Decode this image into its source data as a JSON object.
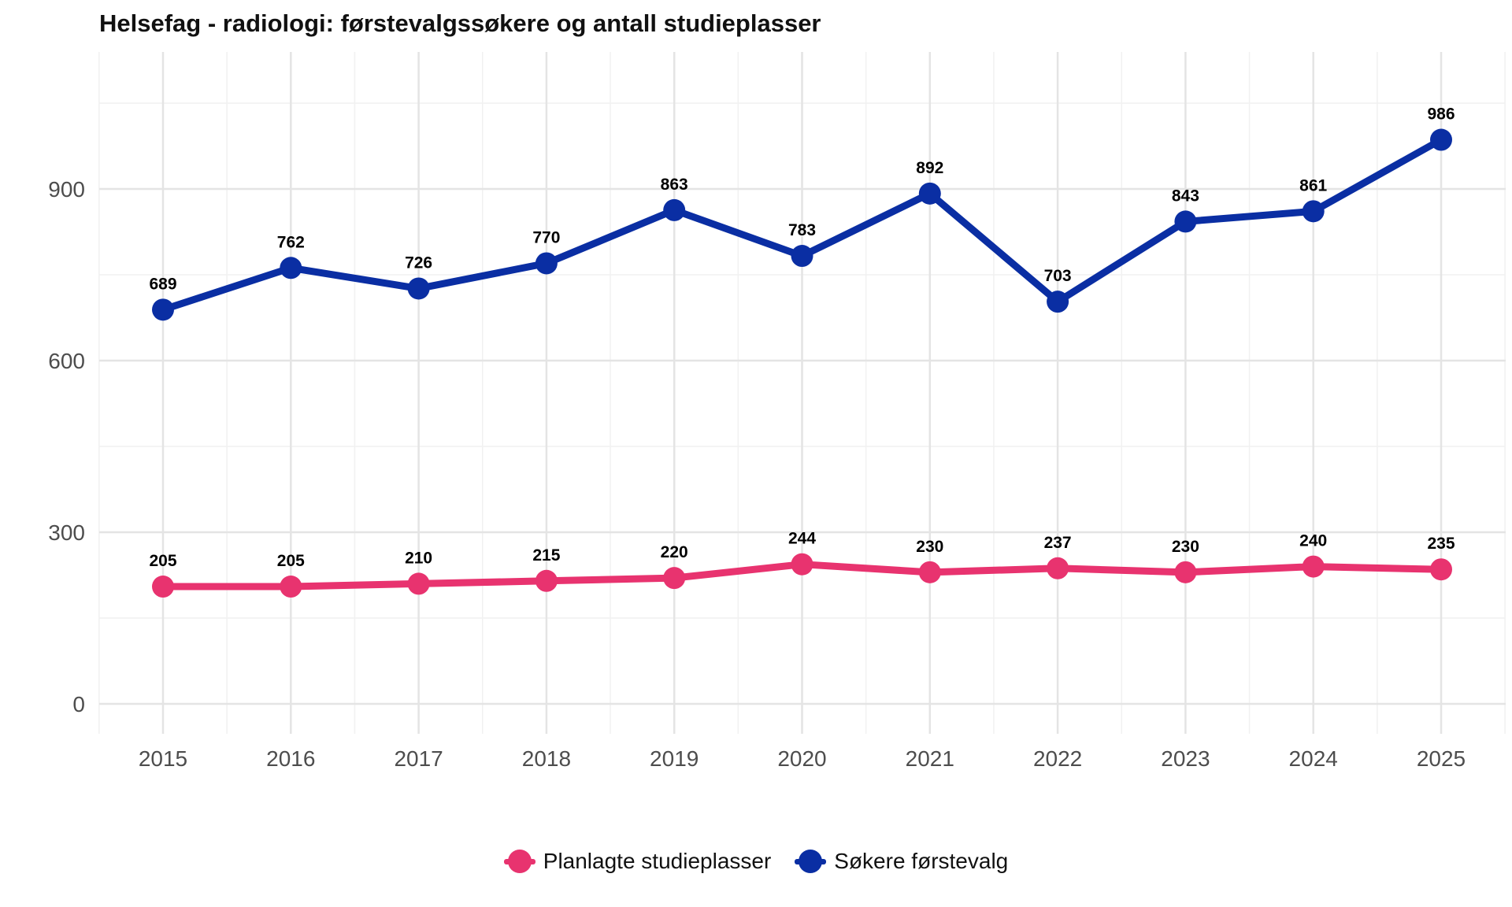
{
  "chart_data": {
    "type": "line",
    "title": "Helsefag - radiologi: førstevalgssøkere og antall studieplasser",
    "xlabel": "",
    "ylabel": "",
    "x": [
      "2015",
      "2016",
      "2017",
      "2018",
      "2019",
      "2020",
      "2021",
      "2022",
      "2023",
      "2024",
      "2025"
    ],
    "ylim": [
      -50,
      1130
    ],
    "yticks": [
      0,
      300,
      600,
      900
    ],
    "grid": true,
    "legend_position": "bottom",
    "series": [
      {
        "name": "Planlagte studieplasser",
        "color": "#e8336f",
        "values": [
          205,
          205,
          210,
          215,
          220,
          244,
          230,
          237,
          230,
          240,
          235
        ]
      },
      {
        "name": "Søkere førstevalg",
        "color": "#0a2ea3",
        "values": [
          689,
          762,
          726,
          770,
          863,
          783,
          892,
          703,
          843,
          861,
          986
        ]
      }
    ]
  }
}
